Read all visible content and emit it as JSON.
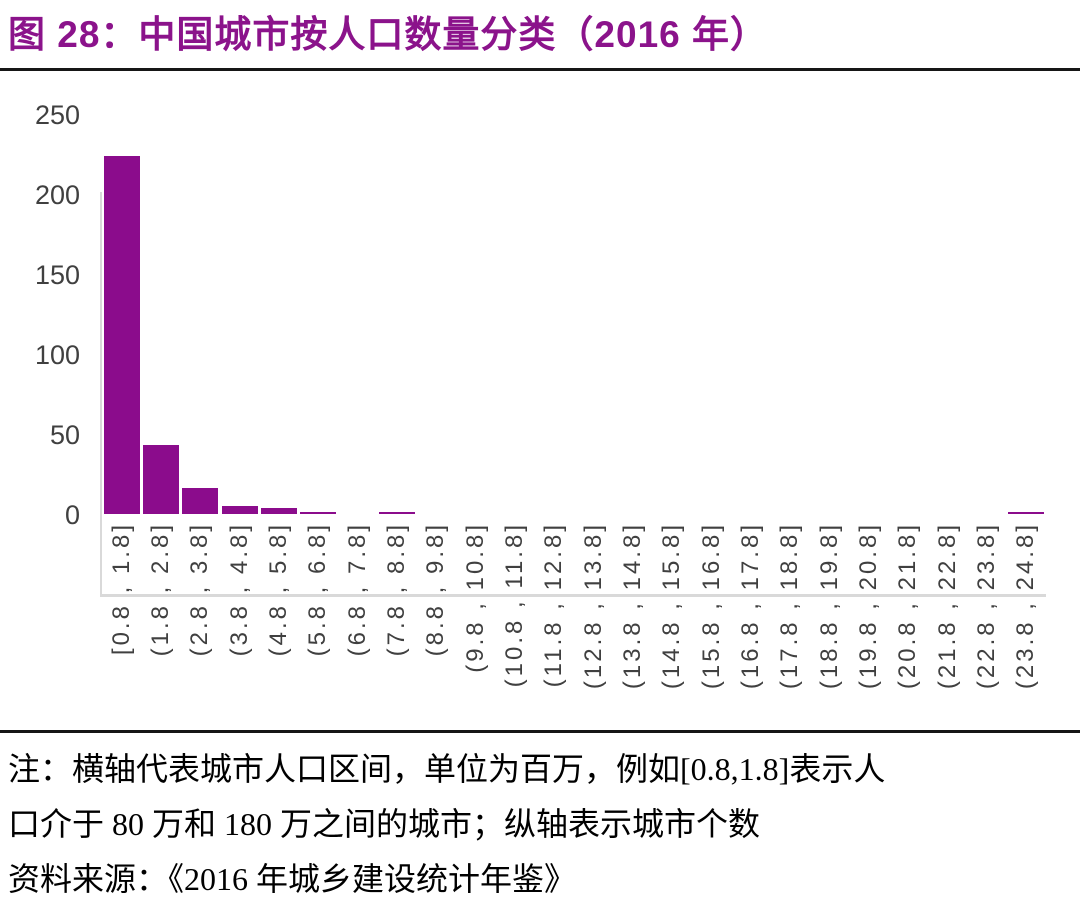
{
  "figure": {
    "title": "图 28：中国城市按人口数量分类（2016 年）"
  },
  "chart_data": {
    "type": "bar",
    "title": "图 28：中国城市按人口数量分类（2016 年）",
    "categories": [
      "[0.8 , 1.8]",
      "(1.8 , 2.8]",
      "(2.8 , 3.8]",
      "(3.8 , 4.8]",
      "(4.8 , 5.8]",
      "(5.8 , 6.8]",
      "(6.8 , 7.8]",
      "(7.8 , 8.8]",
      "(8.8 , 9.8]",
      "(9.8 , 10.8]",
      "(10.8 , 11.8]",
      "(11.8 , 12.8]",
      "(12.8 , 13.8]",
      "(13.8 , 14.8]",
      "(14.8 , 15.8]",
      "(15.8 , 16.8]",
      "(16.8 , 17.8]",
      "(17.8 , 18.8]",
      "(18.8 , 19.8]",
      "(19.8 , 20.8]",
      "(20.8 , 21.8]",
      "(21.8 , 22.8]",
      "(22.8 , 23.8]",
      "(23.8 , 24.8]"
    ],
    "values": [
      224,
      43,
      16,
      5,
      4,
      1,
      0,
      1,
      0,
      0,
      0,
      0,
      0,
      0,
      0,
      0,
      0,
      0,
      0,
      0,
      0,
      0,
      0,
      1
    ],
    "xlabel": "",
    "ylabel": "",
    "ylim": [
      0,
      250
    ],
    "yticks": [
      0,
      50,
      100,
      150,
      200,
      250
    ],
    "grid": false,
    "legend": "none",
    "bar_color": "#8B0C8C"
  },
  "notes": {
    "line1": "注：横轴代表城市人口区间，单位为百万，例如[0.8,1.8]表示人",
    "line2": "口介于 80 万和 180 万之间的城市；纵轴表示城市个数",
    "source": "资料来源：《2016 年城乡建设统计年鉴》"
  },
  "colors": {
    "title": "#8B138B",
    "bar": "#8B0C8C",
    "axis_line": "#D9D9D9",
    "tick_label": "#404040",
    "divider": "#161616"
  }
}
